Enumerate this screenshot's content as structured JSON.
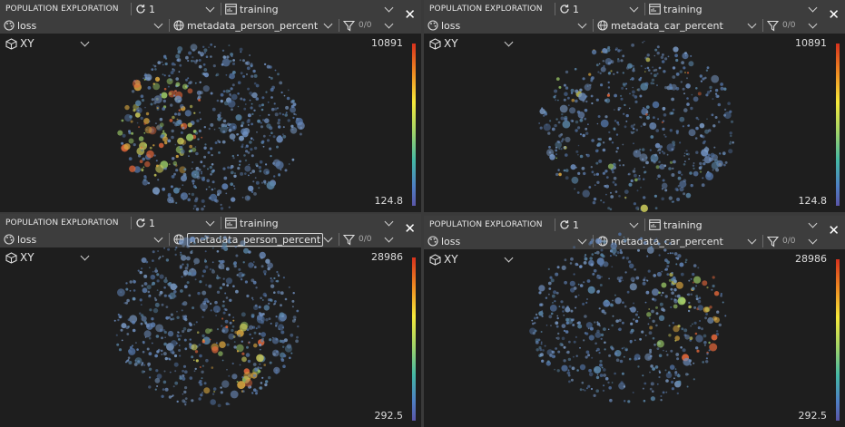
{
  "panels": [
    {
      "title": "POPULATION EXPLORATION",
      "epoch": "1",
      "subset": "training",
      "metric": "loss",
      "color_by": "metadata_person_percent",
      "filter": "0/0",
      "projection": "XY",
      "scale_max": "10891",
      "scale_min": "124.8",
      "highlighted": false
    },
    {
      "title": "POPULATION EXPLORATION",
      "epoch": "1",
      "subset": "training",
      "metric": "loss",
      "color_by": "metadata_car_percent",
      "filter": "0/0",
      "projection": "XY",
      "scale_max": "10891",
      "scale_min": "124.8",
      "highlighted": false
    },
    {
      "title": "POPULATION EXPLORATION",
      "epoch": "1",
      "subset": "training",
      "metric": "loss",
      "color_by": "metadata_person_percent",
      "filter": "0/0",
      "projection": "XY",
      "scale_max": "28986",
      "scale_min": "292.5",
      "highlighted": true
    },
    {
      "title": "POPULATION EXPLORATION",
      "epoch": "1",
      "subset": "training",
      "metric": "loss",
      "color_by": "metadata_car_percent",
      "filter": "0/0",
      "projection": "XY",
      "scale_max": "28986",
      "scale_min": "292.5",
      "highlighted": false
    }
  ],
  "icons": {
    "refresh": "refresh-icon",
    "dataset": "dataset-icon",
    "metric": "palette-icon",
    "color_by": "color-globe-icon",
    "filter": "filter-icon",
    "cube": "cube-icon",
    "close": "close-icon"
  }
}
